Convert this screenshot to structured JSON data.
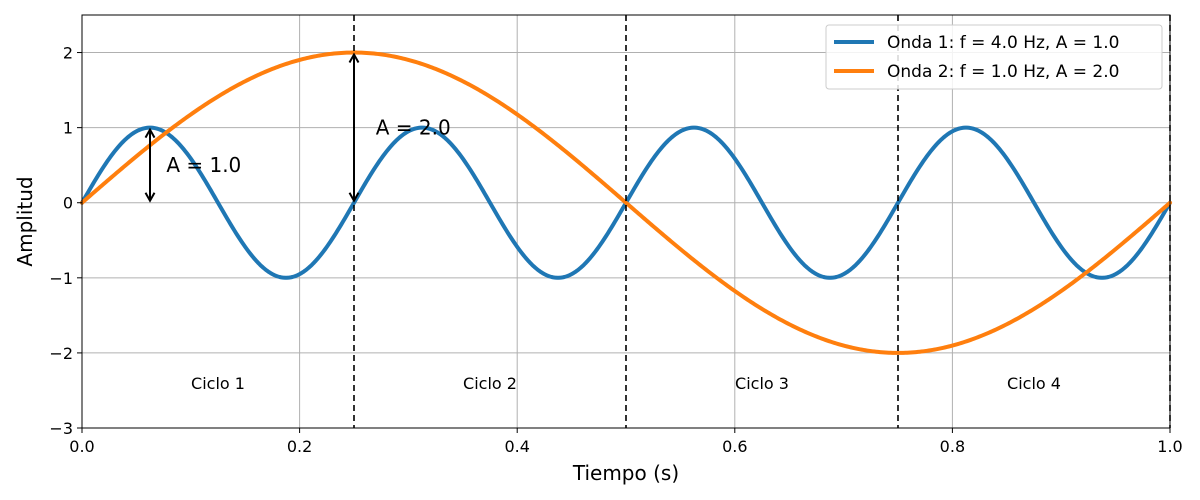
{
  "chart_data": {
    "type": "line",
    "title": "",
    "xlabel": "Tiempo (s)",
    "ylabel": "Amplitud",
    "xlim": [
      0.0,
      1.0
    ],
    "ylim": [
      -3,
      2.5
    ],
    "xticks": [
      0.0,
      0.2,
      0.4,
      0.6,
      0.8,
      1.0
    ],
    "xtick_labels": [
      "0.0",
      "0.2",
      "0.4",
      "0.6",
      "0.8",
      "1.0"
    ],
    "yticks": [
      -3,
      -2,
      -1,
      0,
      1,
      2
    ],
    "ytick_labels": [
      "−3",
      "−2",
      "−1",
      "0",
      "1",
      "2"
    ],
    "grid": true,
    "legend_position": "top-right",
    "series": [
      {
        "name": "Onda 1: f = 4.0 Hz, A = 1.0",
        "color": "#1f77b4",
        "frequency": 4.0,
        "amplitude": 1.0,
        "x": [
          0.0,
          0.03125,
          0.0625,
          0.09375,
          0.125,
          0.15625,
          0.1875,
          0.21875,
          0.25,
          0.28125,
          0.3125,
          0.34375,
          0.375,
          0.40625,
          0.4375,
          0.46875,
          0.5,
          0.53125,
          0.5625,
          0.59375,
          0.625,
          0.65625,
          0.6875,
          0.71875,
          0.75,
          0.78125,
          0.8125,
          0.84375,
          0.875,
          0.90625,
          0.9375,
          0.96875,
          1.0
        ],
        "y": [
          0.0,
          0.707,
          1.0,
          0.707,
          0.0,
          -0.707,
          -1.0,
          -0.707,
          0.0,
          0.707,
          1.0,
          0.707,
          0.0,
          -0.707,
          -1.0,
          -0.707,
          0.0,
          0.707,
          1.0,
          0.707,
          0.0,
          -0.707,
          -1.0,
          -0.707,
          0.0,
          0.707,
          1.0,
          0.707,
          0.0,
          -0.707,
          -1.0,
          -0.707,
          0.0
        ]
      },
      {
        "name": "Onda 2: f = 1.0 Hz, A = 2.0",
        "color": "#ff7f0e",
        "frequency": 1.0,
        "amplitude": 2.0,
        "x": [
          0.0,
          0.0625,
          0.125,
          0.1875,
          0.25,
          0.3125,
          0.375,
          0.4375,
          0.5,
          0.5625,
          0.625,
          0.6875,
          0.75,
          0.8125,
          0.875,
          0.9375,
          1.0
        ],
        "y": [
          0.0,
          0.765,
          1.414,
          1.848,
          2.0,
          1.848,
          1.414,
          0.765,
          0.0,
          -0.765,
          -1.414,
          -1.848,
          -2.0,
          -1.848,
          -1.414,
          -0.765,
          0.0
        ]
      }
    ],
    "cycle_boundaries": [
      0.25,
      0.5,
      0.75,
      1.0
    ],
    "cycles": [
      {
        "label": "Ciclo 1",
        "x": 0.125,
        "y": -2.4
      },
      {
        "label": "Ciclo 2",
        "x": 0.375,
        "y": -2.4
      },
      {
        "label": "Ciclo 3",
        "x": 0.625,
        "y": -2.4
      },
      {
        "label": "Ciclo 4",
        "x": 0.875,
        "y": -2.4
      }
    ],
    "annotations": [
      {
        "text": "A = 1.0",
        "arrow_x": 0.0625,
        "arrow_from": 0.0,
        "arrow_to": 1.0,
        "text_x": 0.0775,
        "text_y": 0.5
      },
      {
        "text": "A = 2.0",
        "arrow_x": 0.25,
        "arrow_from": 0.0,
        "arrow_to": 2.0,
        "text_x": 0.27,
        "text_y": 1.0
      }
    ]
  }
}
